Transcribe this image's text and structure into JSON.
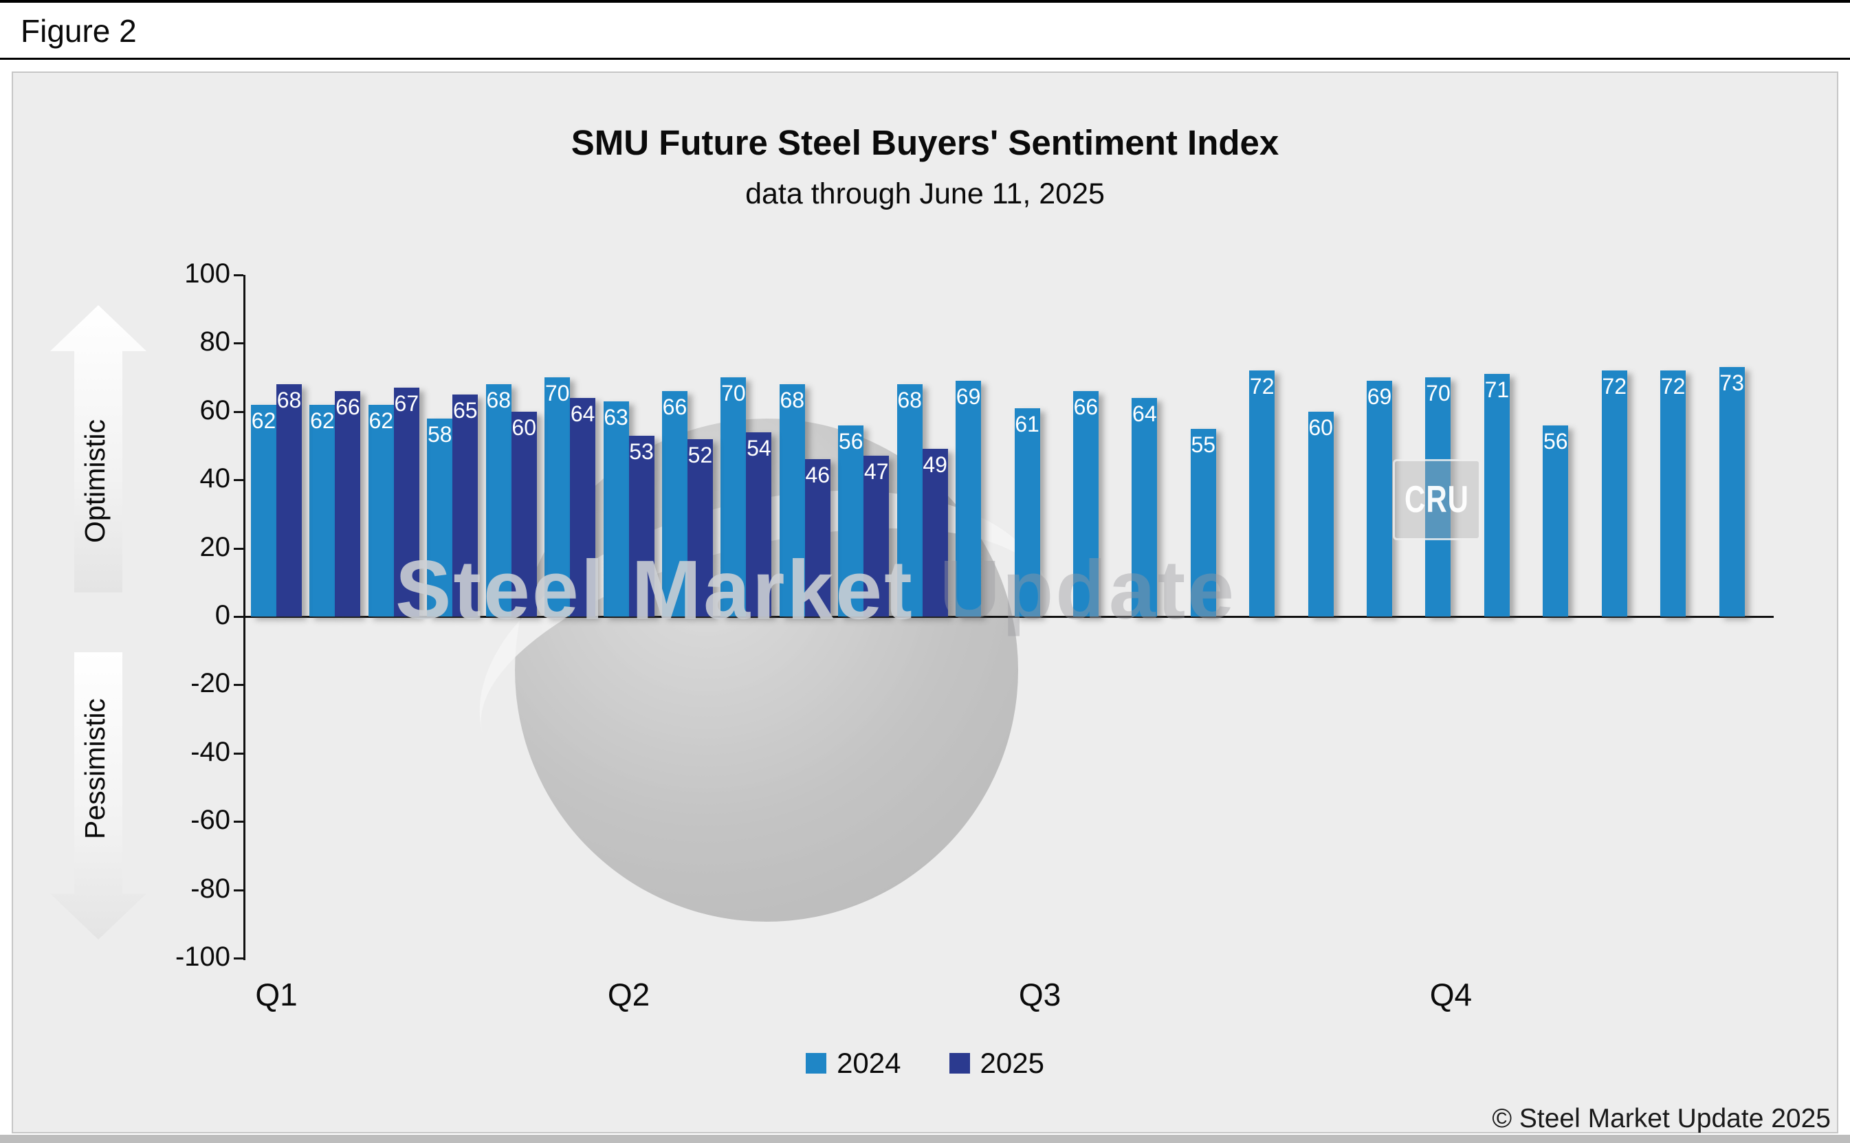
{
  "figure": {
    "label": "Figure 2"
  },
  "chart_data": {
    "type": "bar",
    "title": "SMU Future Steel Buyers' Sentiment Index",
    "subtitle": "data through June 11, 2025",
    "ylabel_positive": "Optimistic",
    "ylabel_negative": "Pessimistic",
    "ylim": [
      -100,
      100
    ],
    "yticks": [
      100,
      80,
      60,
      40,
      20,
      0,
      -20,
      -40,
      -60,
      -80,
      -100
    ],
    "grid": false,
    "legend_position": "bottom",
    "num_groups": 26,
    "quarters": [
      {
        "label": "Q1",
        "start_group": 0
      },
      {
        "label": "Q2",
        "start_group": 6
      },
      {
        "label": "Q3",
        "start_group": 13
      },
      {
        "label": "Q4",
        "start_group": 20
      }
    ],
    "series": [
      {
        "name": "2024",
        "color": "#1f86c6",
        "values": [
          62,
          62,
          62,
          58,
          68,
          70,
          63,
          66,
          70,
          68,
          56,
          68,
          69,
          61,
          66,
          64,
          55,
          72,
          60,
          69,
          70,
          71,
          56,
          72,
          72,
          73
        ]
      },
      {
        "name": "2025",
        "color": "#2b3a8f",
        "values": [
          68,
          66,
          67,
          65,
          60,
          64,
          53,
          52,
          54,
          46,
          47,
          49
        ]
      }
    ]
  },
  "watermark": {
    "text_primary": "Steel Market",
    "text_secondary": " Update",
    "cru_label": "CRU"
  },
  "footer": {
    "copyright": "© Steel Market Update 2025"
  }
}
